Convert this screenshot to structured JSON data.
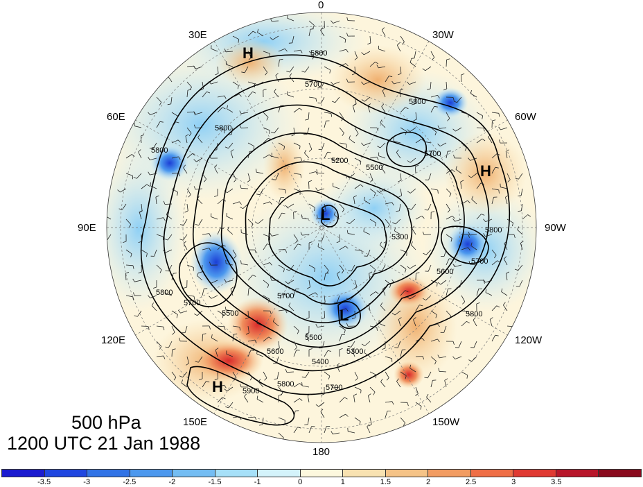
{
  "map": {
    "projection": "polar-stereographic-north",
    "longitude_labels": {
      "lon_0": "0",
      "lon_30w": "30W",
      "lon_60w": "60W",
      "lon_90w": "90W",
      "lon_120w": "120W",
      "lon_150w": "150W",
      "lon_180": "180",
      "lon_150e": "150E",
      "lon_120e": "120E",
      "lon_90e": "90E",
      "lon_60e": "60E",
      "lon_30e": "30E"
    },
    "contour_labels": [
      "5800",
      "5700",
      "5600",
      "5500",
      "5400",
      "5300",
      "5200",
      "5900"
    ],
    "pressure_centers": [
      {
        "type": "H",
        "label": "H"
      },
      {
        "type": "H",
        "label": "H"
      },
      {
        "type": "H",
        "label": "H"
      },
      {
        "type": "L",
        "label": "L"
      },
      {
        "type": "L",
        "label": "L"
      }
    ],
    "colors": {
      "strong_negative": "#1b3fd6",
      "negative": "#5aa7ee",
      "weak_negative": "#bfe9fb",
      "neutral": "#fdf5dc",
      "weak_positive": "#f7d7a0",
      "positive": "#f08e5c",
      "strong_positive": "#d92a2a"
    }
  },
  "caption": {
    "level": "500 hPa",
    "time": "1200 UTC 21 Jan 1988"
  },
  "colorbar": {
    "colors": [
      "#1b1bd0",
      "#1f46e0",
      "#3173e6",
      "#4c98ee",
      "#74bdf3",
      "#a6e0f8",
      "#d4f3fb",
      "#fdf8de",
      "#f8e2b1",
      "#f5c387",
      "#f29c62",
      "#ef6e46",
      "#e03a32",
      "#b8162a",
      "#8a0a1e"
    ],
    "tick_labels": [
      "-3.5",
      "-3",
      "-2.5",
      "-2",
      "-1.5",
      "-1",
      "0",
      "1",
      "1.5",
      "2",
      "2.5",
      "3",
      "3.5"
    ]
  }
}
